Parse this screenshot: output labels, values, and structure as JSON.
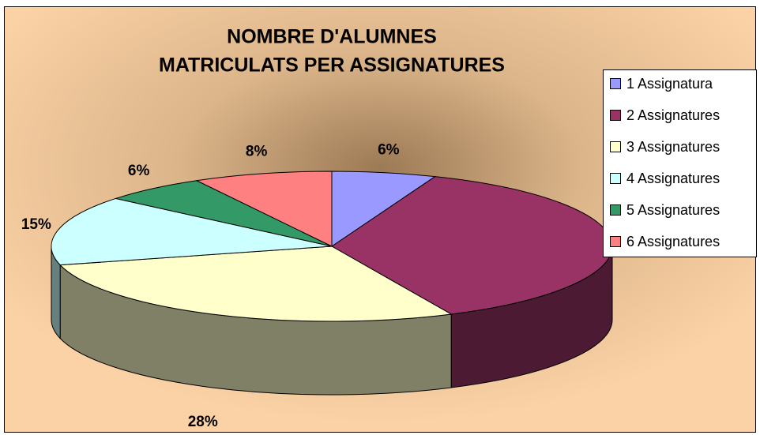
{
  "chart_data": {
    "type": "pie3d",
    "title": [
      "NOMBRE D'ALUMNES",
      "MATRICULATS PER ASSIGNATURES"
    ],
    "categories": [
      "1 Assignatura",
      "2 Assignatures",
      "3 Assignatures",
      "4 Assignatures",
      "5 Assignatures",
      "6 Assignatures"
    ],
    "values": [
      6,
      37,
      28,
      15,
      6,
      8
    ],
    "value_labels": [
      "6%",
      null,
      "28%",
      "15%",
      "6%",
      "8%"
    ],
    "colors": [
      "#9999ff",
      "#993366",
      "#ffffcc",
      "#ccffff",
      "#339966",
      "#ff8080"
    ],
    "legend": "right"
  }
}
